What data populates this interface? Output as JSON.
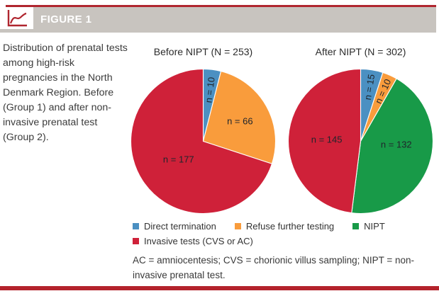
{
  "header": {
    "figure_label": "FIGURE 1",
    "icon": "line-chart-icon"
  },
  "caption": {
    "text": "Distribution of prenatal tests among high-risk pregnancies in the North Denmark Region. Before (Group 1) and after non-invasive prenatal test (Group 2)."
  },
  "colors": {
    "accent_red": "#b0262f",
    "band_gray": "#c8c4bf",
    "blue": "#4b90c2",
    "orange": "#f99c3c",
    "green": "#189a48",
    "red": "#cf2139",
    "pie_label_dark": "#20252c"
  },
  "chart_data": [
    {
      "type": "pie",
      "title": "Before NIPT (N = 253)",
      "total": 253,
      "start_angle_deg": 0,
      "direction": "clockwise",
      "slices": [
        {
          "name": "Direct termination",
          "value": 10,
          "data_label": "n = 10",
          "color_key": "blue",
          "label_radius_frac": 0.72
        },
        {
          "name": "Refuse further testing",
          "value": 66,
          "data_label": "n = 66",
          "color_key": "orange",
          "label_radius_frac": 0.58
        },
        {
          "name": "Invasive tests (CVS or AC)",
          "value": 177,
          "data_label": "n = 177",
          "color_key": "red",
          "label_radius_frac": 0.42
        }
      ]
    },
    {
      "type": "pie",
      "title": "After NIPT (N = 302)",
      "total": 302,
      "start_angle_deg": 0,
      "direction": "clockwise",
      "slices": [
        {
          "name": "Direct termination",
          "value": 15,
          "data_label": "n = 15",
          "color_key": "blue",
          "label_radius_frac": 0.76
        },
        {
          "name": "Refuse further testing",
          "value": 10,
          "data_label": "n = 10",
          "color_key": "orange",
          "label_radius_frac": 0.76
        },
        {
          "name": "NIPT",
          "value": 132,
          "data_label": "n = 132",
          "color_key": "green",
          "label_radius_frac": 0.52,
          "label_nudge": [
            0,
            -12
          ]
        },
        {
          "name": "Invasive tests (CVS or AC)",
          "value": 145,
          "data_label": "n = 145",
          "color_key": "red",
          "label_radius_frac": 0.47
        }
      ]
    }
  ],
  "legend": {
    "items": [
      {
        "label": "Direct termination",
        "color_key": "blue"
      },
      {
        "label": "Refuse further testing",
        "color_key": "orange"
      },
      {
        "label": "NIPT",
        "color_key": "green"
      },
      {
        "label": "Invasive tests (CVS or AC)",
        "color_key": "red"
      }
    ]
  },
  "footnote": {
    "text": "AC = amniocentesis; CVS = chorionic villus sampling; NIPT = non-invasive prenatal test."
  }
}
